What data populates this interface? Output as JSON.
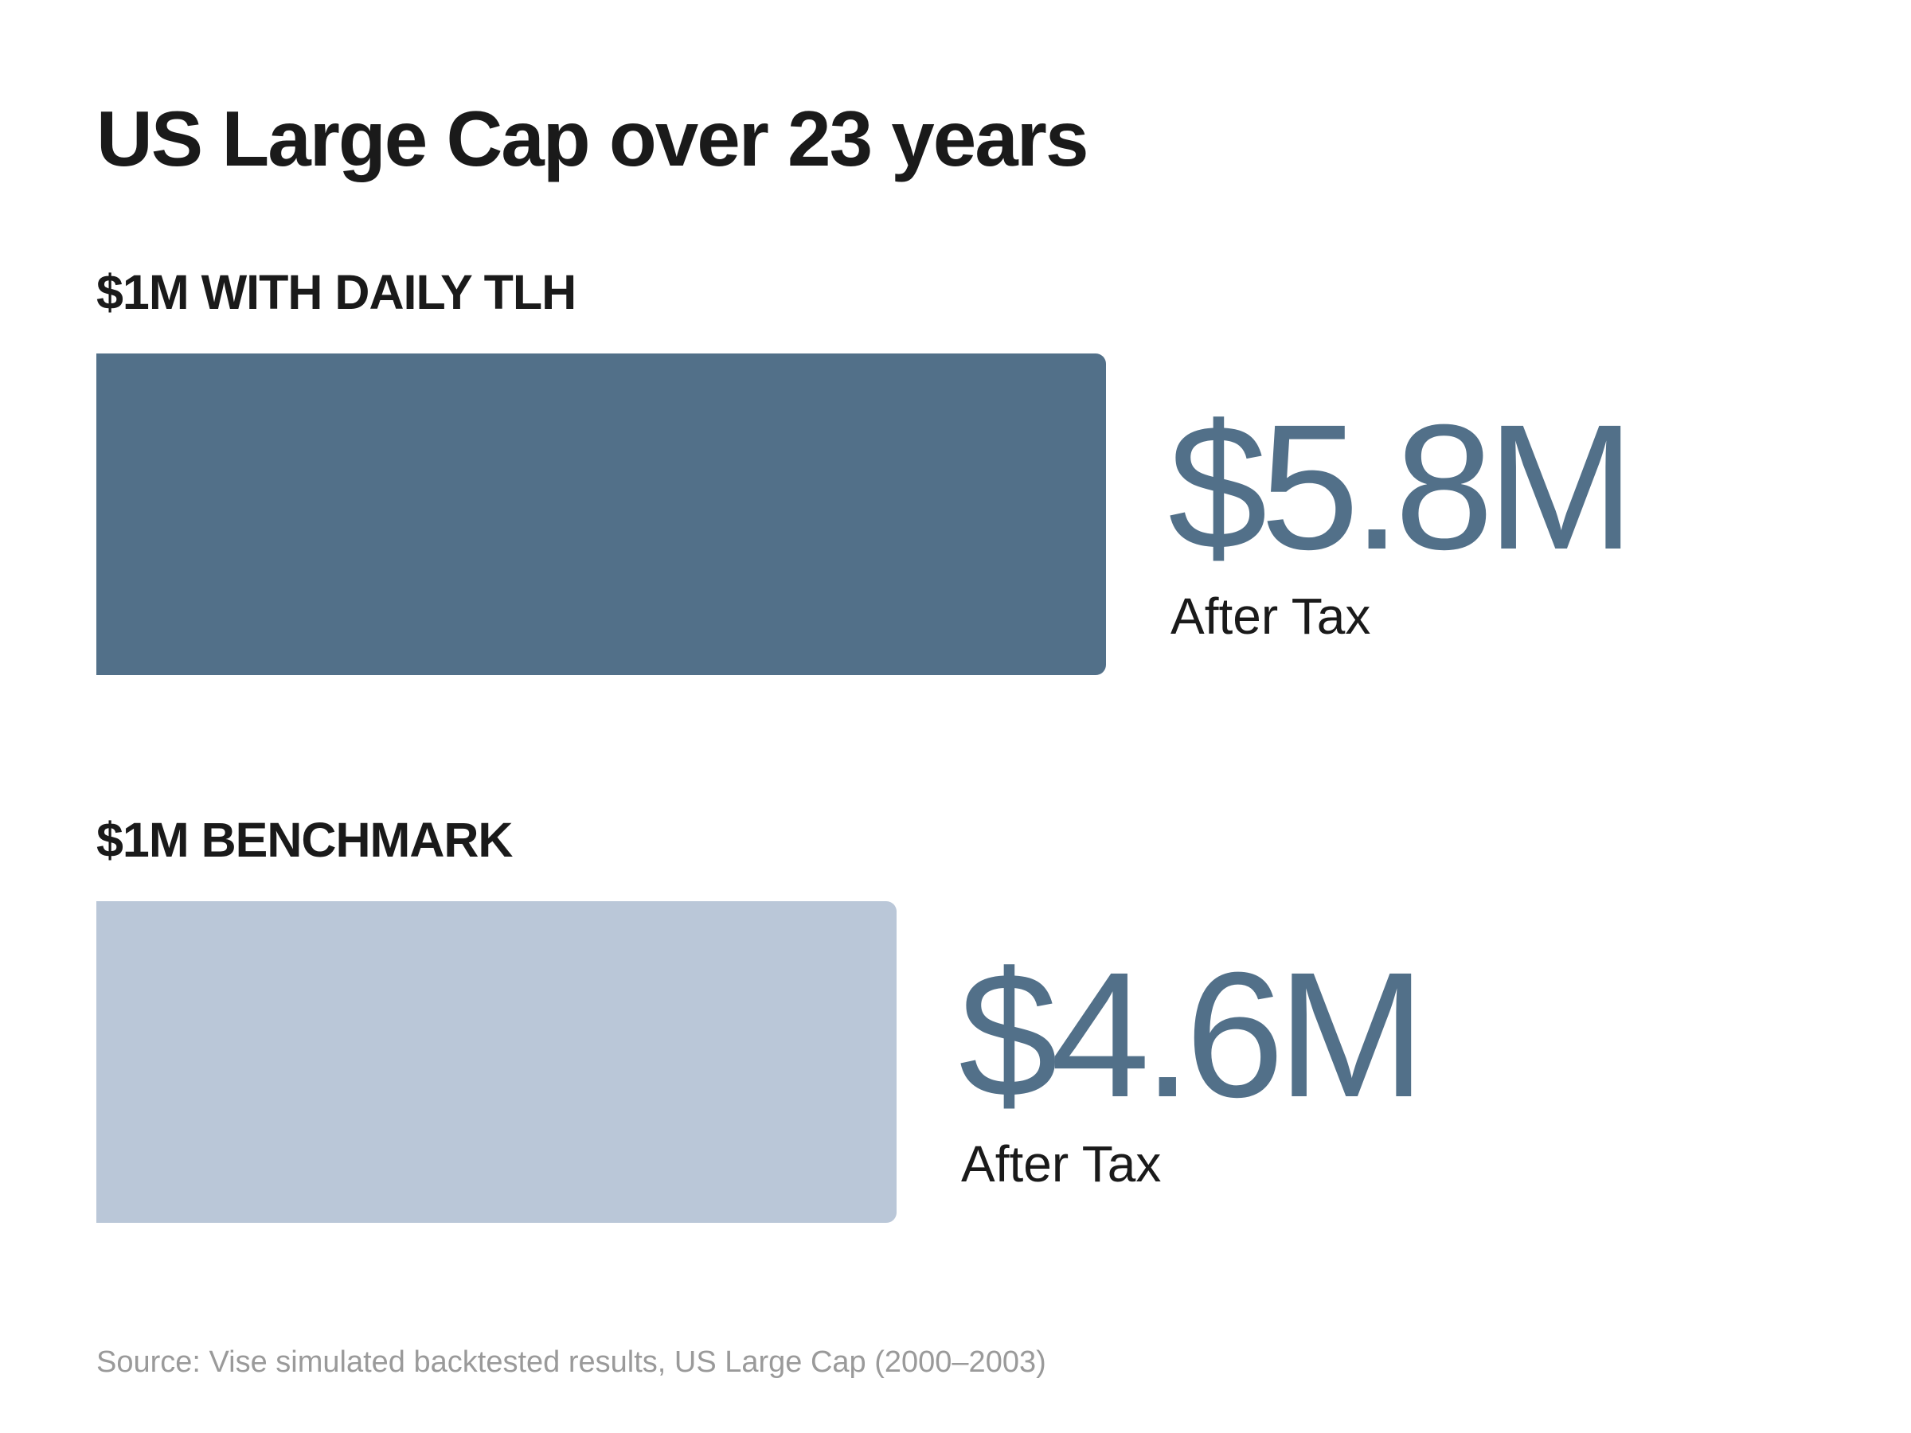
{
  "title": "US Large Cap over 23 years",
  "colors": {
    "primary": "#527089",
    "secondary": "#bac7d8",
    "value_text": "#527089"
  },
  "chart_data": {
    "type": "bar",
    "orientation": "horizontal",
    "title": "US Large Cap over 23 years",
    "categories": [
      "$1M WITH DAILY TLH",
      "$1M BENCHMARK"
    ],
    "values": [
      5.8,
      4.6
    ],
    "value_labels": [
      "$5.8M",
      "$4.6M"
    ],
    "value_sublabels": [
      "After Tax",
      "After Tax"
    ],
    "xlim": [
      0,
      7.32
    ],
    "grid": false,
    "axes_visible": false
  },
  "source": "Source: Vise simulated backtested results, US Large Cap (2000–2003)"
}
